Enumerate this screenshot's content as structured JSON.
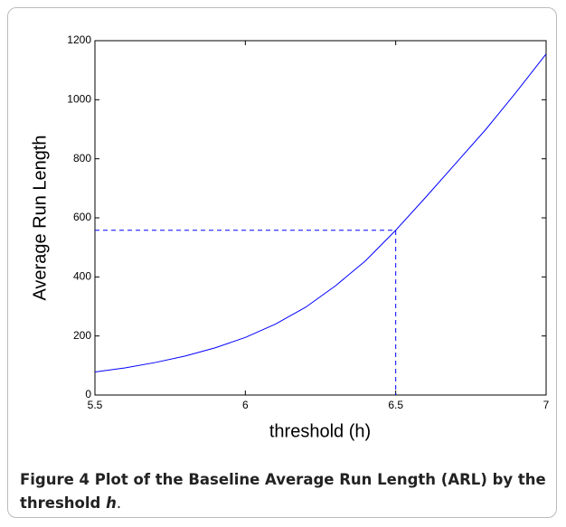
{
  "chart_data": {
    "type": "line",
    "x_label": "threshold (h)",
    "y_label": "Average Run Length",
    "x": [
      5.5,
      5.6,
      5.7,
      5.8,
      5.9,
      6.0,
      6.1,
      6.2,
      6.3,
      6.4,
      6.5,
      6.6,
      6.7,
      6.8,
      6.9,
      7.0
    ],
    "series": [
      {
        "color": "#0000ff",
        "values": [
          78,
          92,
          110,
          132,
          160,
          195,
          240,
          297,
          370,
          455,
          558,
          670,
          785,
          900,
          1025,
          1155
        ]
      }
    ],
    "reference": {
      "x": 6.5,
      "y": 558,
      "color": "#0000ff"
    },
    "xlim": [
      5.5,
      7
    ],
    "xticks": [
      5.5,
      6,
      6.5,
      7
    ],
    "ylim": [
      0,
      1200
    ],
    "yticks": [
      0,
      200,
      400,
      600,
      800,
      1000,
      1200
    ],
    "grid": false
  },
  "caption": {
    "label": "Figure 4",
    "text": "Plot of the Baseline Average Run Length (ARL) by the threshold ",
    "var": "h",
    "end": "."
  }
}
